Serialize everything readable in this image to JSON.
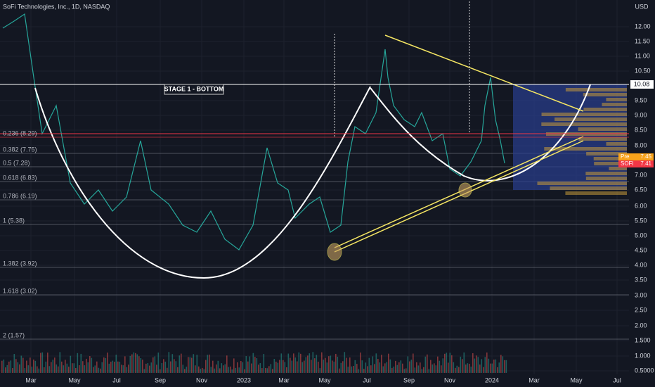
{
  "header": {
    "title": "SoFi Technologies, Inc., 1D, NASDAQ",
    "currency": "USD"
  },
  "annotation": "STAGE 1 - BOTTOM",
  "price_axis": [
    "12.00",
    "11.50",
    "11.00",
    "10.50",
    "9.50",
    "9.00",
    "8.50",
    "8.00",
    "7.00",
    "6.50",
    "6.00",
    "5.50",
    "5.00",
    "4.50",
    "4.00",
    "3.50",
    "3.00",
    "2.50",
    "2.00",
    "1.500",
    "1.000",
    "0.5000"
  ],
  "last_price": "10.08",
  "badges": [
    {
      "label": "Pre",
      "value": "7.45"
    },
    {
      "label": "SOFI",
      "value": "7.41"
    }
  ],
  "fib_levels": [
    "0.236 (8.29)",
    "0.382 (7.75)",
    "0.5 (7.28)",
    "0.618 (6.83)",
    "0.786 (6.19)",
    "1 (5.38)",
    "1.382 (3.92)",
    "1.618 (3.02)",
    "2 (1.57)"
  ],
  "time_axis": [
    "Mar",
    "May",
    "Jul",
    "Sep",
    "Nov",
    "2023",
    "Mar",
    "May",
    "Jul",
    "Sep",
    "Nov",
    "2024",
    "Mar",
    "May",
    "Jul"
  ]
}
